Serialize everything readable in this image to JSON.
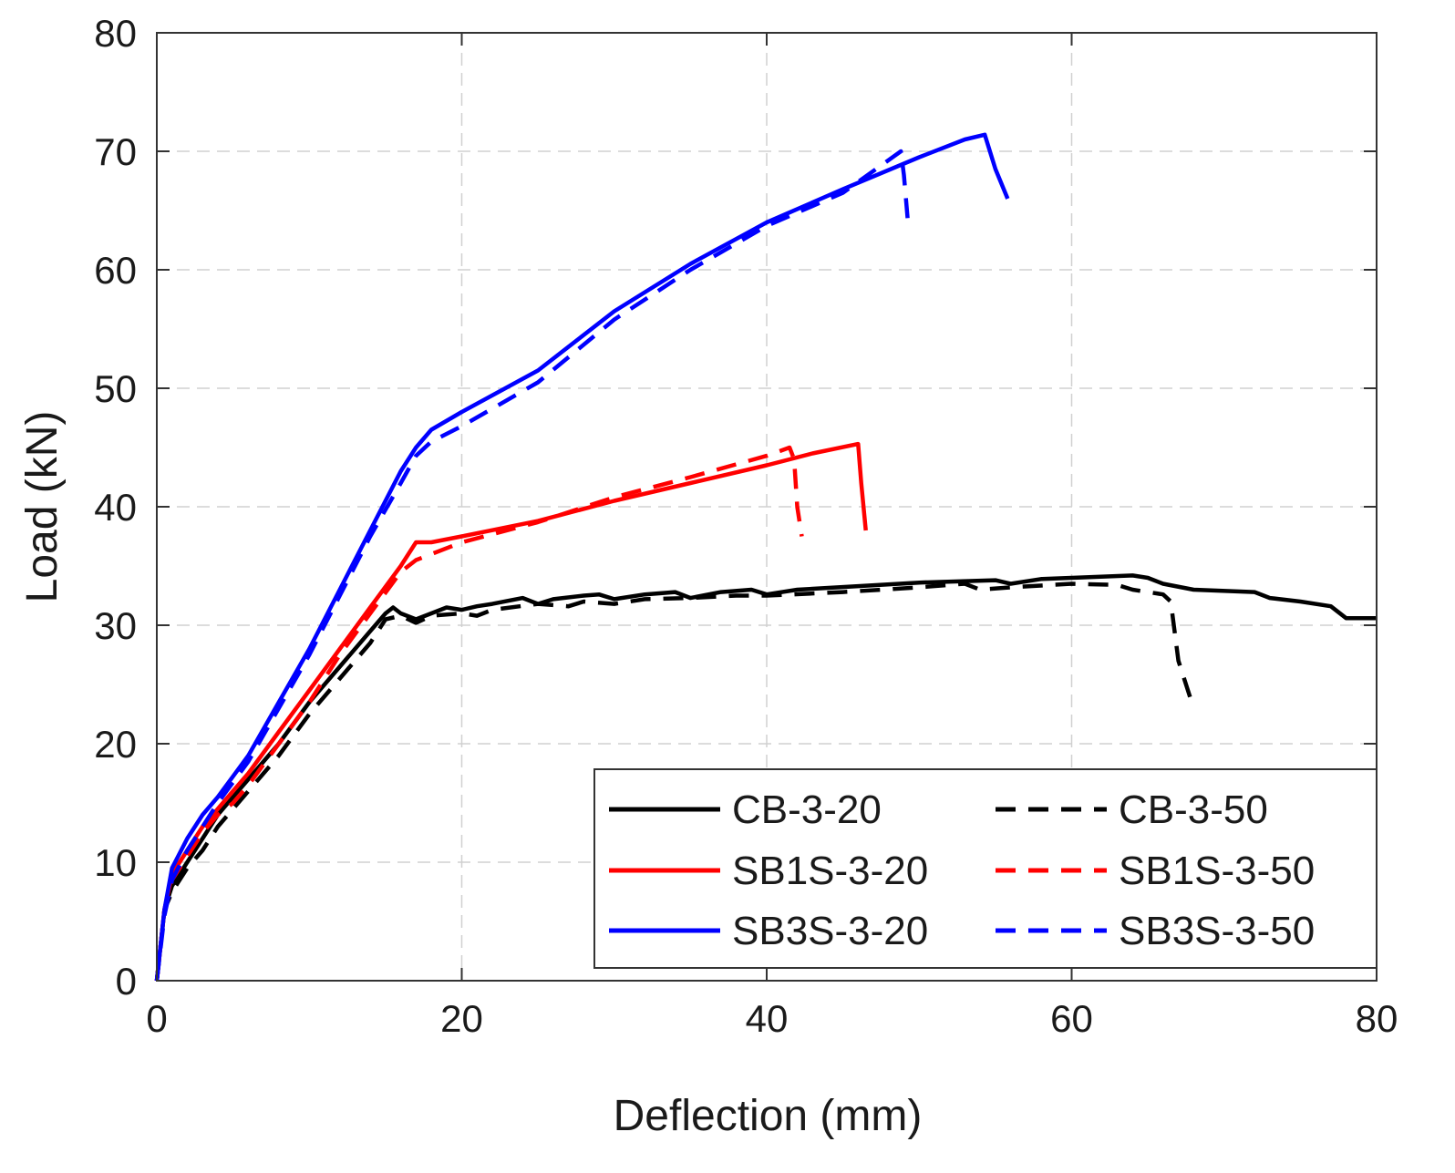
{
  "chart_data": {
    "type": "line",
    "title": "",
    "xlabel": "Deflection (mm)",
    "ylabel": "Load (kN)",
    "xlim": [
      0,
      80
    ],
    "ylim": [
      0,
      80
    ],
    "xticks": [
      0,
      20,
      40,
      60,
      80
    ],
    "yticks": [
      0,
      10,
      20,
      30,
      40,
      50,
      60,
      70,
      80
    ],
    "grid": true,
    "legend_position": "bottom-right",
    "series": [
      {
        "name": "CB-3-20",
        "color": "#000000",
        "style": "solid",
        "points": [
          [
            0,
            0
          ],
          [
            0.5,
            6
          ],
          [
            1,
            8
          ],
          [
            2,
            10
          ],
          [
            3,
            12
          ],
          [
            4,
            14
          ],
          [
            5,
            15.5
          ],
          [
            6,
            17
          ],
          [
            8,
            20
          ],
          [
            10,
            23.5
          ],
          [
            12,
            26.5
          ],
          [
            14,
            29.5
          ],
          [
            15,
            31
          ],
          [
            15.5,
            31.5
          ],
          [
            16,
            31
          ],
          [
            17,
            30.5
          ],
          [
            18,
            31
          ],
          [
            19,
            31.5
          ],
          [
            20,
            31.3
          ],
          [
            21,
            31.6
          ],
          [
            22,
            31.8
          ],
          [
            24,
            32.3
          ],
          [
            25,
            31.8
          ],
          [
            26,
            32.2
          ],
          [
            28,
            32.5
          ],
          [
            29,
            32.6
          ],
          [
            30,
            32.2
          ],
          [
            32,
            32.6
          ],
          [
            34,
            32.8
          ],
          [
            35,
            32.3
          ],
          [
            37,
            32.8
          ],
          [
            39,
            33
          ],
          [
            40,
            32.6
          ],
          [
            42,
            33
          ],
          [
            46,
            33.3
          ],
          [
            50,
            33.6
          ],
          [
            55,
            33.8
          ],
          [
            56,
            33.5
          ],
          [
            58,
            33.9
          ],
          [
            60,
            34
          ],
          [
            64,
            34.2
          ],
          [
            65,
            34
          ],
          [
            66,
            33.5
          ],
          [
            68,
            33
          ],
          [
            72,
            32.8
          ],
          [
            73,
            32.3
          ],
          [
            75,
            32
          ],
          [
            77,
            31.6
          ],
          [
            78,
            30.6
          ],
          [
            80,
            30.6
          ]
        ]
      },
      {
        "name": "CB-3-50",
        "color": "#000000",
        "style": "dashed",
        "points": [
          [
            0,
            0
          ],
          [
            0.5,
            6
          ],
          [
            1,
            7.5
          ],
          [
            2,
            9.5
          ],
          [
            3,
            11
          ],
          [
            4,
            13
          ],
          [
            5,
            14.5
          ],
          [
            6,
            16
          ],
          [
            8,
            19
          ],
          [
            10,
            22.5
          ],
          [
            12,
            25.5
          ],
          [
            14,
            28.5
          ],
          [
            15,
            30.5
          ],
          [
            16,
            30.8
          ],
          [
            17,
            30.2
          ],
          [
            18,
            30.8
          ],
          [
            20,
            31
          ],
          [
            21,
            30.8
          ],
          [
            22,
            31.3
          ],
          [
            25,
            31.8
          ],
          [
            27,
            31.6
          ],
          [
            28,
            32
          ],
          [
            30,
            31.8
          ],
          [
            32,
            32.2
          ],
          [
            35,
            32.3
          ],
          [
            38,
            32.5
          ],
          [
            40,
            32.5
          ],
          [
            45,
            32.8
          ],
          [
            50,
            33.2
          ],
          [
            53,
            33.5
          ],
          [
            54,
            33
          ],
          [
            56,
            33.2
          ],
          [
            60,
            33.5
          ],
          [
            63,
            33.4
          ],
          [
            64,
            33
          ],
          [
            66,
            32.6
          ],
          [
            66.5,
            32
          ],
          [
            67,
            27
          ],
          [
            68,
            23
          ]
        ]
      },
      {
        "name": "SB1S-3-20",
        "color": "#ff0000",
        "style": "solid",
        "points": [
          [
            0,
            0
          ],
          [
            0.5,
            6
          ],
          [
            1,
            9
          ],
          [
            2,
            11
          ],
          [
            3,
            13
          ],
          [
            4,
            14.5
          ],
          [
            5,
            16
          ],
          [
            6,
            17.5
          ],
          [
            8,
            21
          ],
          [
            10,
            24.5
          ],
          [
            12,
            28
          ],
          [
            14,
            31.5
          ],
          [
            16,
            35
          ],
          [
            17,
            37
          ],
          [
            18,
            37
          ],
          [
            20,
            37.5
          ],
          [
            25,
            38.8
          ],
          [
            30,
            40.5
          ],
          [
            35,
            42
          ],
          [
            40,
            43.5
          ],
          [
            43,
            44.5
          ],
          [
            46,
            45.3
          ],
          [
            46.2,
            42
          ],
          [
            46.5,
            38
          ]
        ]
      },
      {
        "name": "SB1S-3-50",
        "color": "#ff0000",
        "style": "dashed",
        "points": [
          [
            0,
            0
          ],
          [
            0.5,
            6
          ],
          [
            1,
            8.5
          ],
          [
            2,
            10.5
          ],
          [
            3,
            12.5
          ],
          [
            4,
            14
          ],
          [
            5,
            15
          ],
          [
            6,
            16.5
          ],
          [
            8,
            20
          ],
          [
            10,
            23.5
          ],
          [
            12,
            27.5
          ],
          [
            14,
            31
          ],
          [
            16,
            34.5
          ],
          [
            17,
            35.5
          ],
          [
            18,
            36
          ],
          [
            20,
            37
          ],
          [
            25,
            38.7
          ],
          [
            30,
            40.8
          ],
          [
            35,
            42.5
          ],
          [
            40,
            44.3
          ],
          [
            41.5,
            45
          ],
          [
            41.8,
            44
          ],
          [
            42,
            40
          ],
          [
            42.3,
            37.5
          ]
        ]
      },
      {
        "name": "SB3S-3-20",
        "color": "#0000ff",
        "style": "solid",
        "points": [
          [
            0,
            0
          ],
          [
            0.5,
            6
          ],
          [
            1,
            9.5
          ],
          [
            2,
            12
          ],
          [
            3,
            14
          ],
          [
            4,
            15.5
          ],
          [
            6,
            19
          ],
          [
            8,
            23.5
          ],
          [
            10,
            28
          ],
          [
            12,
            33
          ],
          [
            14,
            38
          ],
          [
            16,
            43
          ],
          [
            17,
            45
          ],
          [
            18,
            46.5
          ],
          [
            20,
            48
          ],
          [
            25,
            51.5
          ],
          [
            30,
            56.5
          ],
          [
            35,
            60.5
          ],
          [
            40,
            64
          ],
          [
            45,
            66.8
          ],
          [
            50,
            69.5
          ],
          [
            53,
            71
          ],
          [
            54.3,
            71.4
          ],
          [
            55,
            68.5
          ],
          [
            55.8,
            66
          ]
        ]
      },
      {
        "name": "SB3S-3-50",
        "color": "#0000ff",
        "style": "dashed",
        "points": [
          [
            0,
            0
          ],
          [
            0.5,
            5.5
          ],
          [
            1,
            8.5
          ],
          [
            2,
            11
          ],
          [
            3,
            13
          ],
          [
            4,
            15
          ],
          [
            6,
            18.5
          ],
          [
            8,
            23
          ],
          [
            10,
            27.5
          ],
          [
            12,
            32.5
          ],
          [
            14,
            37.5
          ],
          [
            16,
            42
          ],
          [
            17,
            44.3
          ],
          [
            18,
            45.5
          ],
          [
            20,
            46.8
          ],
          [
            25,
            50.5
          ],
          [
            30,
            55.8
          ],
          [
            35,
            60
          ],
          [
            40,
            63.7
          ],
          [
            45,
            66.5
          ],
          [
            48.8,
            70
          ],
          [
            49,
            68
          ],
          [
            49.3,
            63.5
          ]
        ]
      }
    ]
  }
}
